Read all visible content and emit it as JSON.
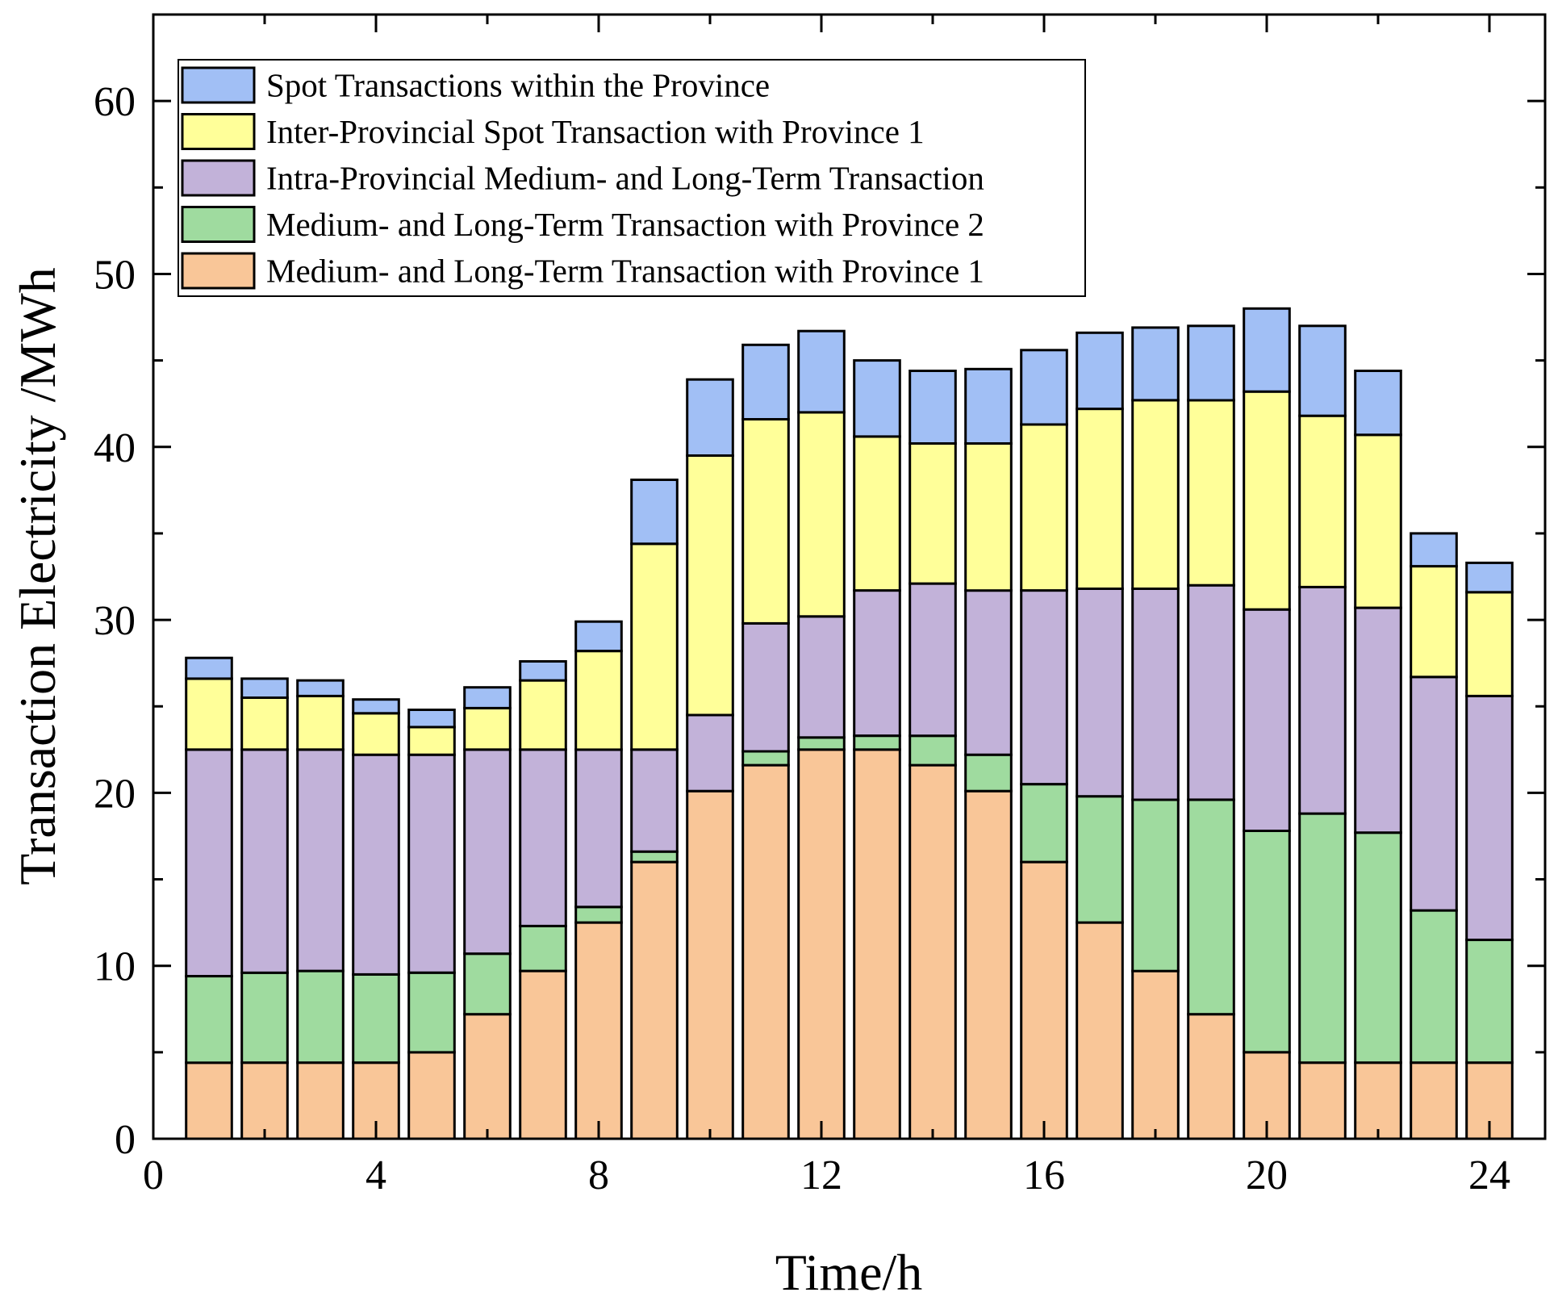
{
  "chart_data": {
    "type": "bar",
    "stacked": true,
    "title": "",
    "xlabel": "Time/h",
    "ylabel": "Transaction Electricity /MWh",
    "xlim": [
      0,
      25
    ],
    "ylim": [
      0,
      65
    ],
    "xticks": [
      0,
      4,
      8,
      12,
      16,
      20,
      24
    ],
    "yticks": [
      0,
      10,
      20,
      30,
      40,
      50,
      60
    ],
    "grid": false,
    "legend_position": "top-left",
    "x": [
      1,
      2,
      3,
      4,
      5,
      6,
      7,
      8,
      9,
      10,
      11,
      12,
      13,
      14,
      15,
      16,
      17,
      18,
      19,
      20,
      21,
      22,
      23,
      24
    ],
    "series": [
      {
        "name": "Medium- and Long-Term Transaction with Province 1",
        "color": "#F9C698",
        "values": [
          4.4,
          4.4,
          4.4,
          4.4,
          5.0,
          7.2,
          9.7,
          12.5,
          16.0,
          20.1,
          21.6,
          22.5,
          22.5,
          21.6,
          20.1,
          16.0,
          12.5,
          9.7,
          7.2,
          5.0,
          4.4,
          4.4,
          4.4,
          4.4
        ]
      },
      {
        "name": "Medium- and Long-Term Transaction with Province 2",
        "color": "#9FDB9F",
        "values": [
          5.0,
          5.2,
          5.3,
          5.1,
          4.6,
          3.5,
          2.6,
          0.9,
          0.6,
          0.0,
          0.8,
          0.7,
          0.8,
          1.7,
          2.1,
          4.5,
          7.3,
          9.9,
          12.4,
          12.8,
          14.4,
          13.3,
          8.8,
          7.1
        ]
      },
      {
        "name": "Intra-Provincial Medium- and Long-Term Transaction",
        "color": "#C2B2D9",
        "values": [
          13.1,
          12.9,
          12.8,
          12.7,
          12.6,
          11.8,
          10.2,
          9.1,
          5.9,
          4.4,
          7.4,
          7.0,
          8.4,
          8.8,
          9.5,
          11.2,
          12.0,
          12.2,
          12.4,
          12.8,
          13.1,
          13.0,
          13.5,
          14.1
        ]
      },
      {
        "name": "Inter-Provincial Spot Transaction with Province 1",
        "color": "#FFFF99",
        "values": [
          4.1,
          3.0,
          3.1,
          2.4,
          1.6,
          2.4,
          4.0,
          5.7,
          11.9,
          15.0,
          11.8,
          11.8,
          8.9,
          8.1,
          8.5,
          9.6,
          10.4,
          10.9,
          10.7,
          12.6,
          9.9,
          10.0,
          6.4,
          6.0
        ]
      },
      {
        "name": "Spot Transactions within the Province",
        "color": "#A1BFF5",
        "values": [
          1.2,
          1.1,
          0.9,
          0.8,
          1.0,
          1.2,
          1.1,
          1.7,
          3.7,
          4.4,
          4.3,
          4.7,
          4.4,
          4.2,
          4.3,
          4.3,
          4.4,
          4.2,
          4.3,
          4.8,
          5.2,
          3.7,
          1.9,
          1.7
        ]
      }
    ]
  }
}
